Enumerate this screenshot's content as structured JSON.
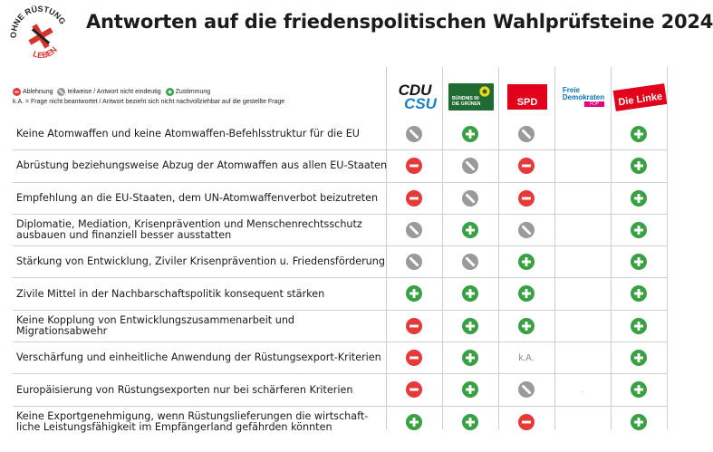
{
  "title": "Antworten auf die friedenspolitischen Wahlprüfsteine 2024",
  "logo": {
    "top": "OHNE RÜSTUNG",
    "bottom": "LEBEN"
  },
  "legend": {
    "ablehnung": "Ablehnung",
    "teilweise": "teilweise / Antwort nicht eindeutig",
    "zustimmung": "Zustimmung",
    "ka_note": "k.A. = Frage nicht beantwortet / Antwort bezieht sich nicht nachvollziehbar auf die gestellte Frage"
  },
  "parties": [
    {
      "id": "cdu",
      "line1": "CDU",
      "line2": "CSU"
    },
    {
      "id": "gruene",
      "line1": "BÜNDNIS 90",
      "line2": "DIE GRÜNEN"
    },
    {
      "id": "spd",
      "line1": "SPD"
    },
    {
      "id": "fdp",
      "line1": "Freie",
      "line2": "Demokraten",
      "line3": "FDP"
    },
    {
      "id": "linke",
      "line1": "Die Linke"
    }
  ],
  "colors": {
    "red": "#e63a3a",
    "green": "#3aa044",
    "gray": "#9a9a9a"
  },
  "rows": [
    {
      "label": "Keine Atomwaffen und keine Atomwaffen-Befehlsstruktur für die EU",
      "values": [
        "partial",
        "yes",
        "partial",
        "",
        "yes"
      ]
    },
    {
      "label": "Abrüstung beziehungsweise Abzug der Atomwaffen aus allen EU-Staaten",
      "values": [
        "no",
        "partial",
        "no",
        "",
        "yes"
      ]
    },
    {
      "label": "Empfehlung an die EU-Staaten, dem UN-Atomwaffenverbot beizutreten",
      "values": [
        "no",
        "partial",
        "no",
        "",
        "yes"
      ]
    },
    {
      "label": "Diplomatie, Mediation, Krisenprävention und Menschenrechtsschutz ausbauen und finanziell besser ausstatten",
      "values": [
        "partial",
        "yes",
        "partial",
        "",
        "yes"
      ]
    },
    {
      "label": "Stärkung von Entwicklung, Ziviler Krisenprävention u. Friedensförderung",
      "values": [
        "partial",
        "partial",
        "yes",
        "",
        "yes"
      ]
    },
    {
      "label": "Zivile Mittel in der Nachbarschaftspolitik konsequent stärken",
      "values": [
        "yes",
        "yes",
        "yes",
        "",
        "yes"
      ]
    },
    {
      "label": "Keine Kopplung von Entwicklungszusammenarbeit und Migrationsabwehr",
      "values": [
        "no",
        "yes",
        "yes",
        "",
        "yes"
      ]
    },
    {
      "label": "Verschärfung und einheitliche Anwendung der Rüstungsexport-Kriterien",
      "values": [
        "no",
        "yes",
        "k.A.",
        "",
        "yes"
      ]
    },
    {
      "label": "Europäisierung von Rüstungsexporten nur bei schärferen Kriterien",
      "values": [
        "no",
        "yes",
        "partial",
        ".",
        "yes"
      ]
    },
    {
      "label": "Keine Exportgenehmigung, wenn Rüstungslieferungen die wirtschaft-liche Leistungsfähigkeit im Empfängerland gefährden könnten",
      "values": [
        "yes",
        "yes",
        "no",
        "",
        "yes"
      ]
    }
  ]
}
